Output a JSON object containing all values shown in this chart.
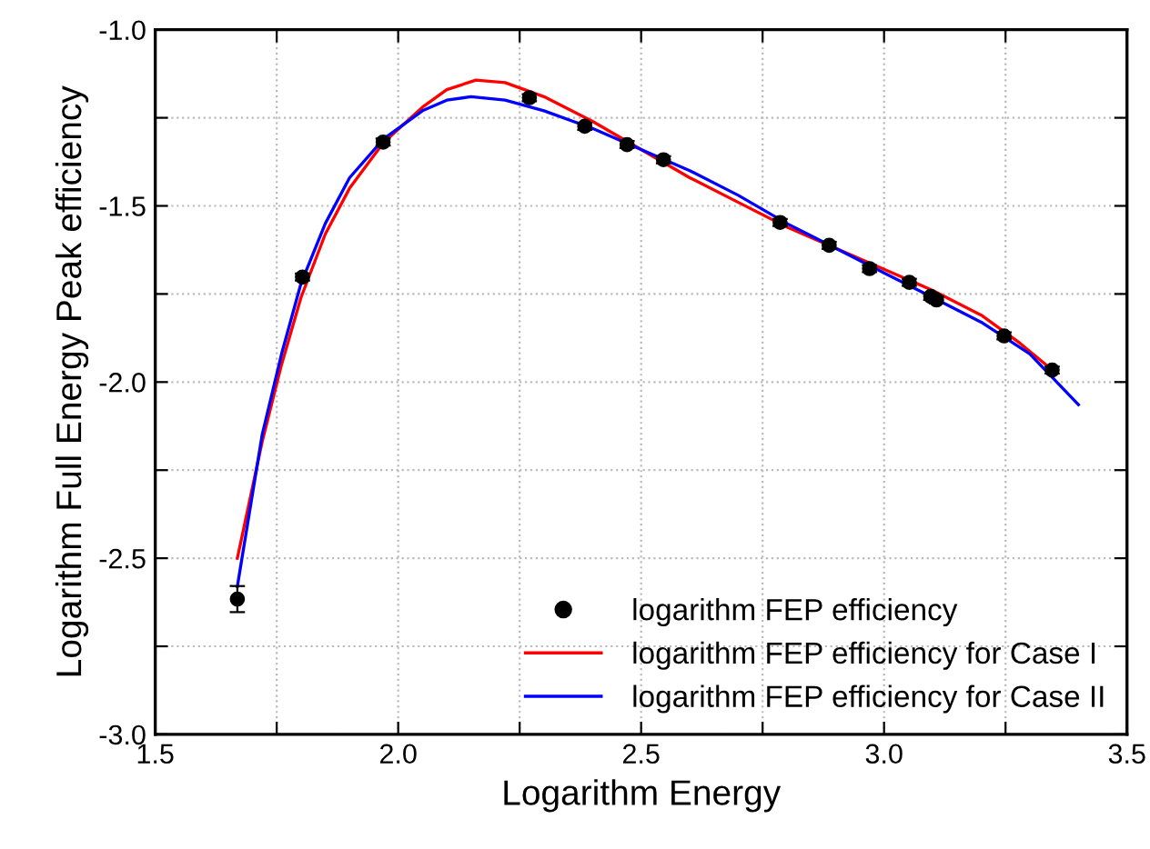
{
  "chart_data": {
    "type": "scatter",
    "xlabel": "Logarithm Energy",
    "ylabel": "Logarithm Full Energy Peak efficiency",
    "xlim": [
      1.5,
      3.5
    ],
    "ylim": [
      -3.0,
      -1.0
    ],
    "xticks": [
      1.5,
      {
        "value": 1.75,
        "label": null
      },
      {
        "value": 2.0,
        "label": "2.0"
      },
      {
        "value": 2.25,
        "label": null
      },
      2.5,
      {
        "value": 2.75,
        "label": null
      },
      {
        "value": 3.0,
        "label": "3.0"
      },
      {
        "value": 3.25,
        "label": null
      },
      3.5
    ],
    "yticks": [
      {
        "value": -3.0,
        "label": "-3.0"
      },
      {
        "value": -2.75,
        "label": null
      },
      {
        "value": -2.5,
        "label": "-2.5"
      },
      {
        "value": -2.25,
        "label": null
      },
      {
        "value": -2.0,
        "label": "-2.0"
      },
      {
        "value": -1.75,
        "label": null
      },
      {
        "value": -1.5,
        "label": "-1.5"
      },
      {
        "value": -1.25,
        "label": null
      },
      {
        "value": -1.0,
        "label": "-1.0"
      }
    ],
    "grid": true,
    "legend": "bottom right",
    "series": [
      {
        "name": "logarithm FEP efficiency",
        "color": "#000000",
        "marker": "circle",
        "x": [
          1.669,
          1.803,
          1.969,
          2.27,
          2.384,
          2.471,
          2.546,
          2.786,
          2.887,
          2.97,
          3.052,
          3.096,
          3.108,
          3.247,
          3.346
        ],
        "values": [
          -2.616,
          -1.702,
          -1.319,
          -1.193,
          -1.274,
          -1.326,
          -1.369,
          -1.547,
          -1.612,
          -1.678,
          -1.717,
          -1.757,
          -1.767,
          -1.869,
          -1.966
        ],
        "errors": [
          0.037,
          0.01,
          0.01,
          0.01,
          0.01,
          0.01,
          0.01,
          0.01,
          0.01,
          0.01,
          0.01,
          0.01,
          0.01,
          0.01,
          0.01
        ]
      },
      {
        "name": "logarithm FEP efficiency for Case I",
        "type": "line",
        "color": "#ff0000",
        "line_style": "solid",
        "x": [
          1.669,
          1.72,
          1.76,
          1.8,
          1.85,
          1.9,
          1.97,
          2.05,
          2.1,
          2.16,
          2.22,
          2.3,
          2.4,
          2.5,
          2.6,
          2.7,
          2.8,
          2.9,
          3.0,
          3.1,
          3.2,
          3.28,
          3.35
        ],
        "values": [
          -2.5,
          -2.17,
          -1.95,
          -1.76,
          -1.58,
          -1.45,
          -1.32,
          -1.22,
          -1.17,
          -1.143,
          -1.15,
          -1.19,
          -1.26,
          -1.34,
          -1.42,
          -1.49,
          -1.56,
          -1.62,
          -1.68,
          -1.74,
          -1.81,
          -1.89,
          -1.97
        ]
      },
      {
        "name": "logarithm FEP efficiency for Case II",
        "type": "line",
        "color": "#0000ff",
        "line_style": "solid",
        "x": [
          1.669,
          1.72,
          1.76,
          1.8,
          1.85,
          1.9,
          1.97,
          2.05,
          2.1,
          2.15,
          2.22,
          2.3,
          2.4,
          2.5,
          2.6,
          2.7,
          2.8,
          2.9,
          3.0,
          3.1,
          3.2,
          3.3,
          3.4
        ],
        "values": [
          -2.58,
          -2.15,
          -1.92,
          -1.72,
          -1.55,
          -1.42,
          -1.31,
          -1.23,
          -1.2,
          -1.19,
          -1.2,
          -1.23,
          -1.28,
          -1.34,
          -1.4,
          -1.47,
          -1.55,
          -1.62,
          -1.69,
          -1.76,
          -1.83,
          -1.92,
          -2.064
        ]
      }
    ]
  }
}
